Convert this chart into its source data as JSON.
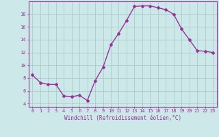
{
  "x": [
    0,
    1,
    2,
    3,
    4,
    5,
    6,
    7,
    8,
    9,
    10,
    11,
    12,
    13,
    14,
    15,
    16,
    17,
    18,
    19,
    20,
    21,
    22,
    23
  ],
  "y": [
    8.5,
    7.3,
    7.0,
    7.0,
    5.2,
    5.1,
    5.3,
    4.5,
    7.6,
    9.7,
    13.2,
    15.0,
    17.0,
    19.2,
    19.3,
    19.3,
    19.0,
    18.7,
    18.0,
    15.7,
    14.0,
    12.3,
    12.2,
    12.0
  ],
  "line_color": "#993399",
  "marker": "D",
  "marker_size": 2.0,
  "bg_color": "#cce8e8",
  "grid_color": "#aacccc",
  "xlabel": "Windchill (Refroidissement éolien,°C)",
  "ylim": [
    3.5,
    20.0
  ],
  "xlim": [
    -0.5,
    23.5
  ],
  "yticks": [
    4,
    6,
    8,
    10,
    12,
    14,
    16,
    18
  ],
  "xtick_labels": [
    "0",
    "1",
    "2",
    "3",
    "4",
    "5",
    "6",
    "7",
    "8",
    "9",
    "10",
    "11",
    "12",
    "13",
    "14",
    "15",
    "16",
    "17",
    "18",
    "19",
    "20",
    "21",
    "22",
    "23"
  ],
  "tick_color": "#993399",
  "label_color": "#993399",
  "spine_color": "#993399",
  "tick_fontsize": 5.0,
  "xlabel_fontsize": 5.5,
  "linewidth": 1.0
}
